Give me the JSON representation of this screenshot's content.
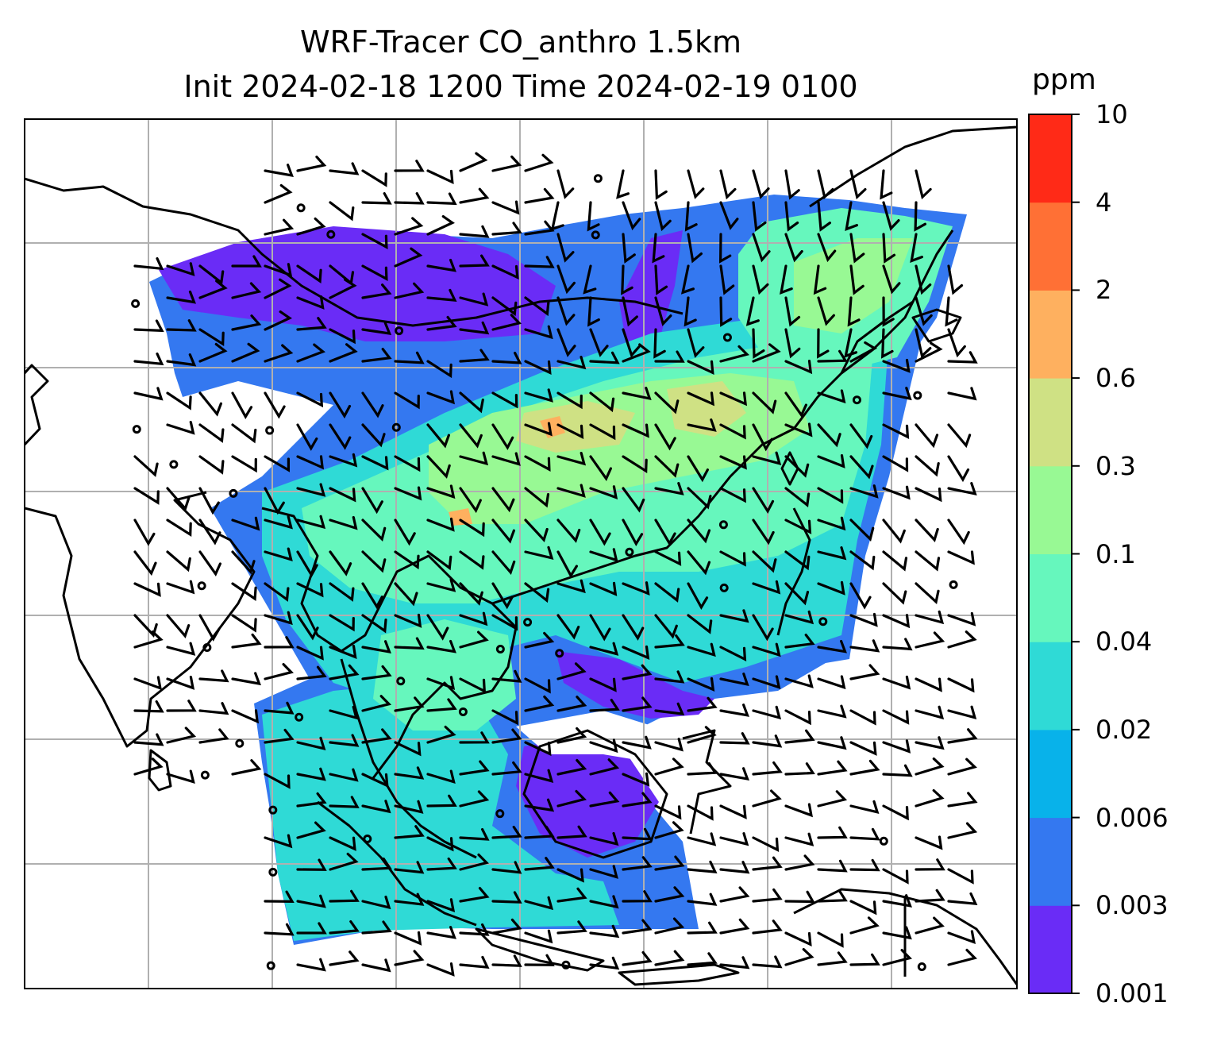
{
  "title_line1": "WRF-Tracer CO_anthro 1.5km",
  "title_line2": "Init 2024-02-18 1200 Time 2024-02-19 0100",
  "colorbar": {
    "unit": "ppm",
    "ticks": [
      "0.001",
      "0.003",
      "0.006",
      "0.02",
      "0.04",
      "0.1",
      "0.3",
      "0.6",
      "2",
      "4",
      "10"
    ],
    "colors": [
      "#6a2cf6",
      "#3478f0",
      "#08b2ea",
      "#2fdad6",
      "#66f7bd",
      "#98f994",
      "#cfe184",
      "#feb05f",
      "#ff7035",
      "#ff2a17"
    ]
  },
  "map": {
    "features": [
      "coastlines",
      "gridlines",
      "wind-barbs",
      "co-concentration-field"
    ],
    "gridline_color": "#b0b0b0",
    "coastline_color": "#000000"
  }
}
